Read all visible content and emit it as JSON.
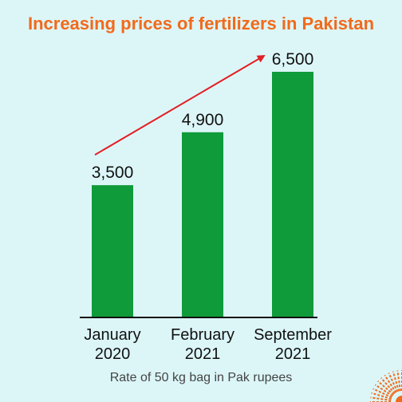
{
  "chart_data": {
    "type": "bar",
    "title": "Increasing prices of fertilizers in Pakistan",
    "categories": [
      "January 2020",
      "February 2021",
      "September 2021"
    ],
    "category_lines": [
      [
        "January",
        "2020"
      ],
      [
        "February",
        "2021"
      ],
      [
        "September",
        "2021"
      ]
    ],
    "values": [
      3500,
      4900,
      6500
    ],
    "value_labels": [
      "3,500",
      "4,900",
      "6,500"
    ],
    "ylim": [
      0,
      6500
    ],
    "grid": false,
    "legend": "none",
    "caption": "Rate of 50 kg bag in Pak rupees",
    "colors": {
      "bar": "#0f9b3a",
      "title": "#f26a1b",
      "arrow": "#e41e24",
      "background": "#dcf6f8",
      "deco": "#f26a1b"
    }
  }
}
